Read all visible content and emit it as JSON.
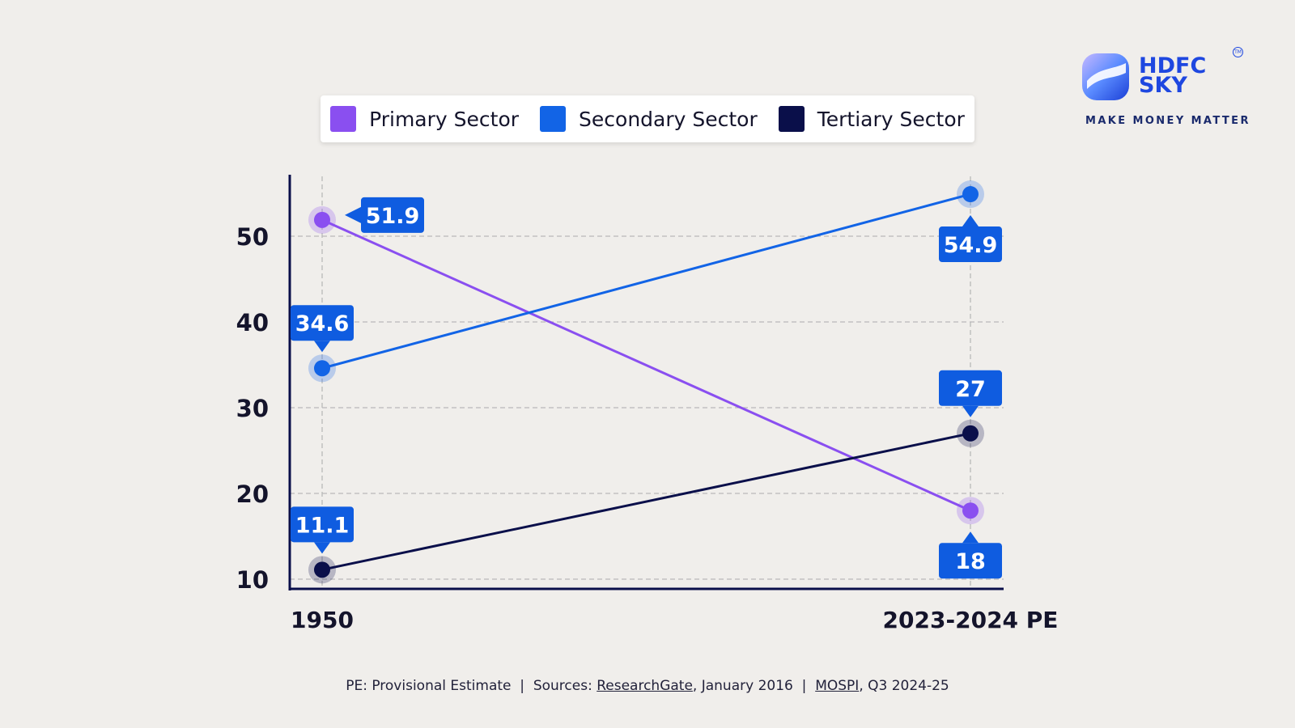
{
  "legend": [
    {
      "label": "Primary Sector",
      "color": "#8a4ff0"
    },
    {
      "label": "Secondary Sector",
      "color": "#1264e6"
    },
    {
      "label": "Tertiary Sector",
      "color": "#0a0f4a"
    }
  ],
  "logo": {
    "line1": "HDFC",
    "line2": "SKY",
    "tm": "TM",
    "tagline": "MAKE MONEY MATTER"
  },
  "footnote": {
    "pe_note": "PE: Provisional Estimate",
    "sep1": "  |  ",
    "sources_label": "Sources: ",
    "source1": "ResearchGate",
    "source1_date": ", January 2016",
    "sep2": "  |  ",
    "source2": "MOSPI",
    "source2_date": ", Q3 2024-25"
  },
  "chart_data": {
    "type": "line",
    "categories": [
      "1950",
      "2023-2024 PE"
    ],
    "ylim": [
      10,
      56
    ],
    "yticks": [
      10,
      20,
      30,
      40,
      50
    ],
    "grid": true,
    "label_color": "#0f5ce0",
    "series": [
      {
        "name": "Primary Sector",
        "values": [
          51.9,
          18
        ],
        "labels": [
          "51.9",
          "18"
        ],
        "color": "#8a4ff0"
      },
      {
        "name": "Secondary Sector",
        "values": [
          34.6,
          54.9
        ],
        "labels": [
          "34.6",
          "54.9"
        ],
        "color": "#1264e6"
      },
      {
        "name": "Tertiary Sector",
        "values": [
          11.1,
          27
        ],
        "labels": [
          "11.1",
          "27"
        ],
        "color": "#0a0f4a"
      }
    ]
  }
}
